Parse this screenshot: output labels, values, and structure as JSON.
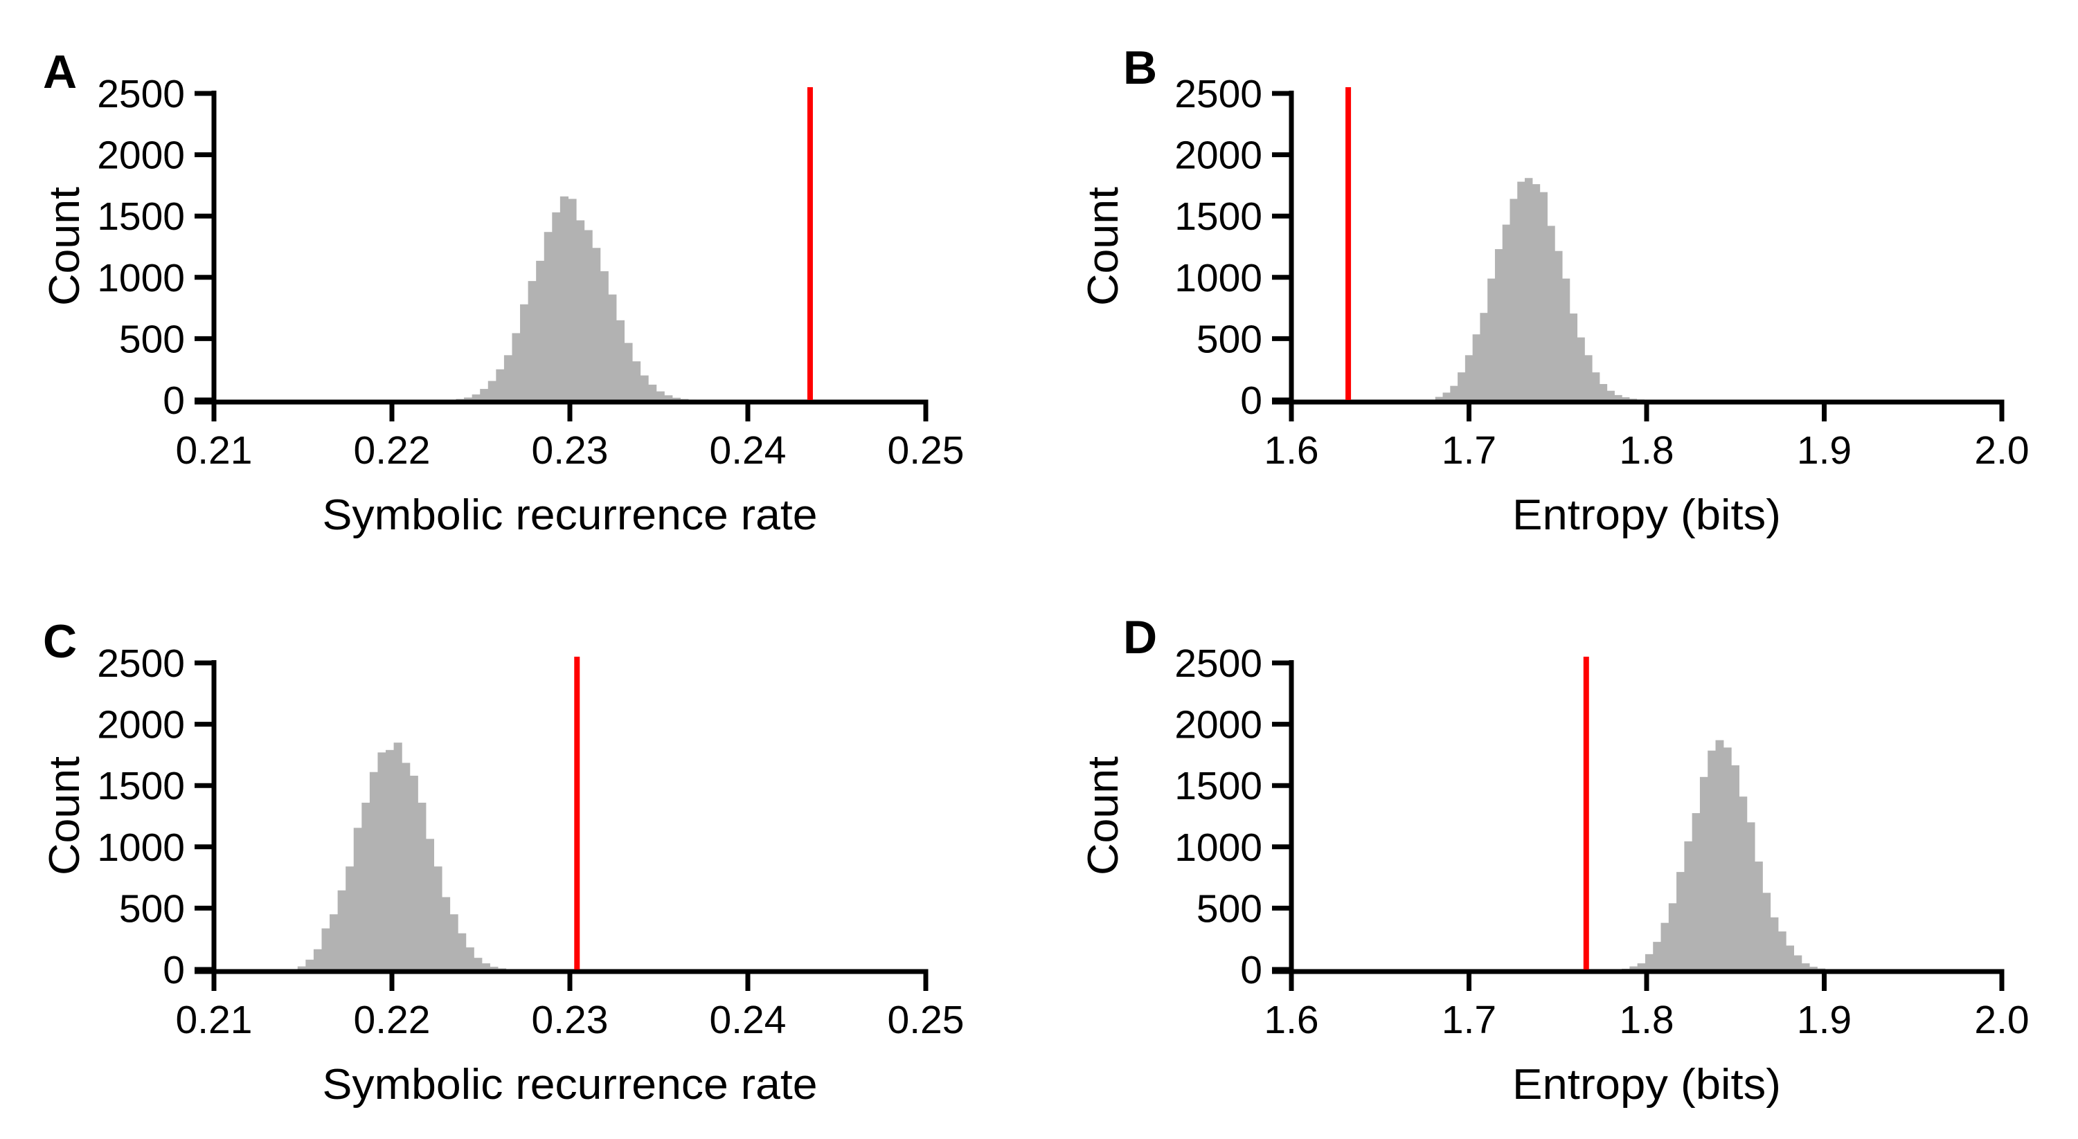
{
  "figure": {
    "background": "#ffffff",
    "bar_color": "#b2b2b2",
    "vline_color": "#ff0000",
    "axis_color": "#000000"
  },
  "chart_data": [
    {
      "panel_label": "A",
      "type": "bar",
      "subtype": "histogram",
      "title": "",
      "xlabel": "Symbolic recurrence rate",
      "ylabel": "Count",
      "xlim": [
        0.21,
        0.25
      ],
      "ylim": [
        0,
        2500
      ],
      "xticks": [
        0.21,
        0.22,
        0.23,
        0.24,
        0.25
      ],
      "xtick_labels": [
        "0.21",
        "0.22",
        "0.23",
        "0.24",
        "0.25"
      ],
      "yticks": [
        0,
        500,
        1000,
        1500,
        2000,
        2500
      ],
      "ytick_labels": [
        "0",
        "500",
        "1000",
        "1500",
        "2000",
        "2500"
      ],
      "grid": false,
      "legend": null,
      "histogram": {
        "bin_start": 0.2236,
        "bin_width": 0.00045,
        "counts": [
          8,
          20,
          45,
          90,
          155,
          250,
          365,
          545,
          780,
          970,
          1135,
          1370,
          1530,
          1660,
          1640,
          1465,
          1385,
          1240,
          1050,
          860,
          650,
          465,
          315,
          200,
          125,
          70,
          38,
          18,
          8,
          3
        ]
      },
      "vline": {
        "x": 0.2435,
        "y_top": 2500
      }
    },
    {
      "panel_label": "B",
      "type": "bar",
      "subtype": "histogram",
      "title": "",
      "xlabel": "Entropy (bits)",
      "ylabel": "Count",
      "xlim": [
        1.6,
        2.0
      ],
      "ylim": [
        0,
        2500
      ],
      "xticks": [
        1.6,
        1.7,
        1.8,
        1.9,
        2.0
      ],
      "xtick_labels": [
        "1.6",
        "1.7",
        "1.8",
        "1.9",
        "2.0"
      ],
      "yticks": [
        0,
        500,
        1000,
        1500,
        2000,
        2500
      ],
      "ytick_labels": [
        "0",
        "500",
        "1000",
        "1500",
        "2000",
        "2500"
      ],
      "grid": false,
      "legend": null,
      "histogram": {
        "bin_start": 1.681,
        "bin_width": 0.0042,
        "counts": [
          25,
          60,
          115,
          225,
          365,
          535,
          710,
          990,
          1230,
          1430,
          1640,
          1780,
          1810,
          1760,
          1695,
          1420,
          1215,
          990,
          705,
          510,
          365,
          225,
          130,
          75,
          40,
          22,
          10,
          4
        ]
      },
      "vline": {
        "x": 1.632,
        "y_top": 2500
      }
    },
    {
      "panel_label": "C",
      "type": "bar",
      "subtype": "histogram",
      "title": "",
      "xlabel": "Symbolic recurrence rate",
      "ylabel": "Count",
      "xlim": [
        0.21,
        0.25
      ],
      "ylim": [
        0,
        2500
      ],
      "xticks": [
        0.21,
        0.22,
        0.23,
        0.24,
        0.25
      ],
      "xtick_labels": [
        "0.21",
        "0.22",
        "0.23",
        "0.24",
        "0.25"
      ],
      "yticks": [
        0,
        500,
        1000,
        1500,
        2000,
        2500
      ],
      "ytick_labels": [
        "0",
        "500",
        "1000",
        "1500",
        "2000",
        "2500"
      ],
      "grid": false,
      "legend": null,
      "histogram": {
        "bin_start": 0.2147,
        "bin_width": 0.00045,
        "counts": [
          25,
          80,
          165,
          335,
          450,
          645,
          840,
          1155,
          1360,
          1610,
          1770,
          1790,
          1850,
          1685,
          1580,
          1360,
          1065,
          840,
          590,
          450,
          295,
          180,
          95,
          50,
          22,
          9
        ]
      },
      "vline": {
        "x": 0.2304,
        "y_top": 2500
      }
    },
    {
      "panel_label": "D",
      "type": "bar",
      "subtype": "histogram",
      "title": "",
      "xlabel": "Entropy (bits)",
      "ylabel": "Count",
      "xlim": [
        1.6,
        2.0
      ],
      "ylim": [
        0,
        2500
      ],
      "xticks": [
        1.6,
        1.7,
        1.8,
        1.9,
        2.0
      ],
      "xtick_labels": [
        "1.6",
        "1.7",
        "1.8",
        "1.9",
        "2.0"
      ],
      "yticks": [
        0,
        500,
        1000,
        1500,
        2000,
        2500
      ],
      "ytick_labels": [
        "0",
        "500",
        "1000",
        "1500",
        "2000",
        "2500"
      ],
      "grid": false,
      "legend": null,
      "histogram": {
        "bin_start": 1.786,
        "bin_width": 0.0044,
        "counts": [
          6,
          25,
          50,
          125,
          225,
          380,
          540,
          795,
          1045,
          1275,
          1570,
          1785,
          1870,
          1810,
          1665,
          1410,
          1200,
          880,
          625,
          425,
          310,
          195,
          115,
          50,
          22,
          8
        ]
      },
      "vline": {
        "x": 1.766,
        "y_top": 2500
      }
    }
  ]
}
